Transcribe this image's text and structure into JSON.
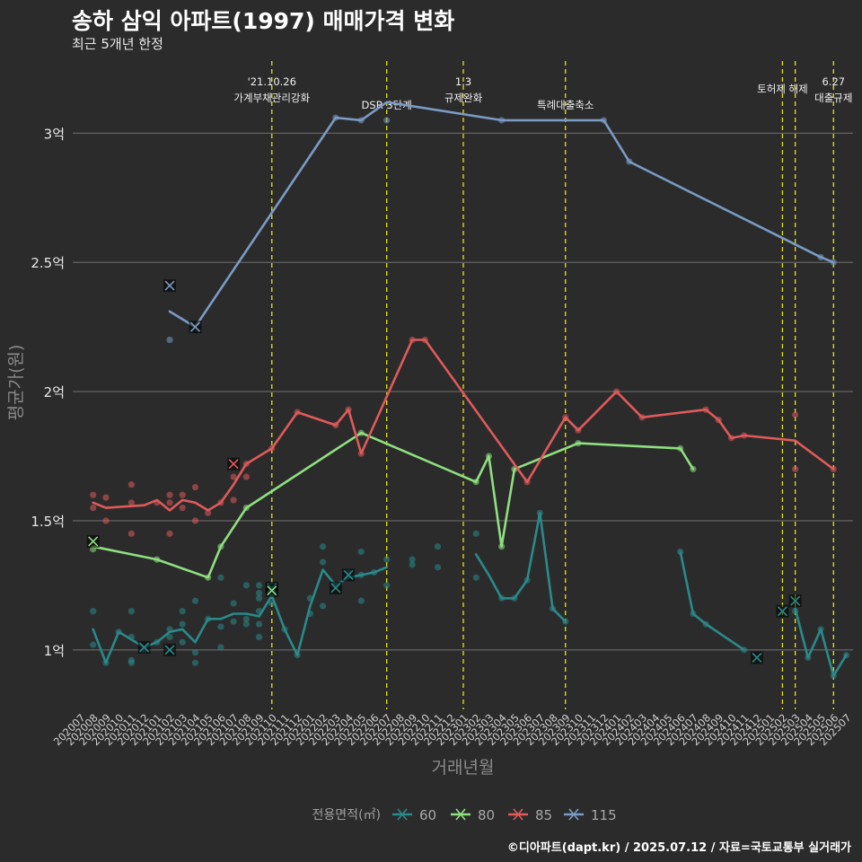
{
  "header": {
    "title": "송하 삼익 아파트(1997) 매매가격 변화",
    "subtitle": "최근 5개년 한정",
    "caption": "©디아파트(dapt.kr) / 2025.07.12 / 자료=국토교통부 실거래가"
  },
  "chart_data": {
    "type": "line",
    "title": "송하 삼익 아파트(1997) 매매가격 변화",
    "subtitle": "최근 5개년 한정",
    "xlabel": "거래년월",
    "ylabel": "평균가(원)",
    "ylim": [
      0.77,
      3.3
    ],
    "yticks": [
      1,
      1.5,
      2,
      2.5,
      3
    ],
    "ytick_labels": [
      "1억",
      "1.5억",
      "2억",
      "2.5억",
      "3억"
    ],
    "grid": true,
    "legend_title": "전용면적(㎡)",
    "legend_position": "bottom",
    "x_categories": [
      "202007",
      "202008",
      "202009",
      "202010",
      "202011",
      "202012",
      "202101",
      "202102",
      "202103",
      "202104",
      "202105",
      "202106",
      "202107",
      "202108",
      "202109",
      "202110",
      "202111",
      "202112",
      "202201",
      "202202",
      "202203",
      "202204",
      "202205",
      "202206",
      "202207",
      "202208",
      "202209",
      "202210",
      "202211",
      "202212",
      "202301",
      "202302",
      "202303",
      "202304",
      "202305",
      "202306",
      "202307",
      "202308",
      "202309",
      "202310",
      "202311",
      "202312",
      "202401",
      "202402",
      "202403",
      "202404",
      "202405",
      "202406",
      "202407",
      "202408",
      "202409",
      "202410",
      "202411",
      "202412",
      "202501",
      "202502",
      "202503",
      "202504",
      "202505",
      "202506",
      "202507"
    ],
    "events": [
      {
        "x": "202110",
        "label": "'21.10.26\n가계부채관리강화",
        "row": 0
      },
      {
        "x": "202207",
        "label": "DSR 3단계",
        "row": 1
      },
      {
        "x": "202301",
        "label": "1.3\n규제완화",
        "row": 0
      },
      {
        "x": "202309",
        "label": "특례대출축소",
        "row": 1
      },
      {
        "x": "202502",
        "label": "토허제 해제",
        "row": 0
      },
      {
        "x": "202503",
        "label": "",
        "row": 0
      },
      {
        "x": "202506",
        "label": "6.27\n대출규제",
        "row": 0
      }
    ],
    "series": [
      {
        "name": "60",
        "color": "#2a8a8a",
        "line": [
          [
            [
              "202008",
              1.08
            ],
            [
              "202009",
              0.95
            ],
            [
              "202010",
              1.07
            ],
            [
              "202011",
              1.04
            ],
            [
              "202012",
              1.01
            ],
            [
              "202101",
              1.03
            ],
            [
              "202102",
              1.07
            ],
            [
              "202103",
              1.08
            ],
            [
              "202104",
              1.03
            ],
            [
              "202105",
              1.12
            ],
            [
              "202106",
              1.12
            ],
            [
              "202107",
              1.14
            ],
            [
              "202108",
              1.14
            ],
            [
              "202109",
              1.13
            ],
            [
              "202110",
              1.21
            ],
            [
              "202111",
              1.08
            ],
            [
              "202112",
              0.98
            ],
            [
              "202201",
              1.17
            ],
            [
              "202202",
              1.31
            ],
            [
              "202203",
              1.25
            ],
            [
              "202204",
              1.28
            ],
            [
              "202205",
              1.29
            ],
            [
              "202206",
              1.3
            ],
            [
              "202207",
              1.32
            ]
          ],
          [
            [
              "202302",
              1.37
            ],
            [
              "202303",
              1.29
            ],
            [
              "202304",
              1.2
            ],
            [
              "202305",
              1.2
            ],
            [
              "202306",
              1.27
            ],
            [
              "202307",
              1.53
            ],
            [
              "202308",
              1.16
            ],
            [
              "202309",
              1.11
            ]
          ],
          [
            [
              "202406",
              1.38
            ],
            [
              "202407",
              1.14
            ],
            [
              "202408",
              1.1
            ],
            [
              "202411",
              1.0
            ]
          ],
          [
            [
              "202503",
              1.16
            ],
            [
              "202504",
              0.97
            ],
            [
              "202505",
              1.08
            ],
            [
              "202506",
              0.9
            ],
            [
              "202507",
              0.98
            ]
          ]
        ],
        "points": [
          [
            "202008",
            1.15
          ],
          [
            "202008",
            1.02
          ],
          [
            "202009",
            0.95
          ],
          [
            "202010",
            1.07
          ],
          [
            "202011",
            1.15
          ],
          [
            "202011",
            1.05
          ],
          [
            "202011",
            0.95
          ],
          [
            "202011",
            0.96
          ],
          [
            "202012",
            1.0
          ],
          [
            "202101",
            1.03
          ],
          [
            "202102",
            1.05
          ],
          [
            "202102",
            1.08
          ],
          [
            "202103",
            1.15
          ],
          [
            "202103",
            1.1
          ],
          [
            "202103",
            1.03
          ],
          [
            "202104",
            1.19
          ],
          [
            "202104",
            0.99
          ],
          [
            "202104",
            0.95
          ],
          [
            "202105",
            1.12
          ],
          [
            "202106",
            1.28
          ],
          [
            "202106",
            1.09
          ],
          [
            "202106",
            1.01
          ],
          [
            "202107",
            1.18
          ],
          [
            "202107",
            1.11
          ],
          [
            "202108",
            1.25
          ],
          [
            "202108",
            1.12
          ],
          [
            "202108",
            1.1
          ],
          [
            "202109",
            1.25
          ],
          [
            "202109",
            1.2
          ],
          [
            "202109",
            1.15
          ],
          [
            "202109",
            1.1
          ],
          [
            "202109",
            1.05
          ],
          [
            "202109",
            1.22
          ],
          [
            "202110",
            1.25
          ],
          [
            "202110",
            1.22
          ],
          [
            "202110",
            1.18
          ],
          [
            "202111",
            1.08
          ],
          [
            "202112",
            0.98
          ],
          [
            "202201",
            1.2
          ],
          [
            "202201",
            1.14
          ],
          [
            "202202",
            1.4
          ],
          [
            "202202",
            1.34
          ],
          [
            "202202",
            1.17
          ],
          [
            "202203",
            1.25
          ],
          [
            "202204",
            1.3
          ],
          [
            "202205",
            1.38
          ],
          [
            "202205",
            1.29
          ],
          [
            "202205",
            1.19
          ],
          [
            "202206",
            1.3
          ],
          [
            "202207",
            1.35
          ],
          [
            "202207",
            1.25
          ],
          [
            "202209",
            1.35
          ],
          [
            "202209",
            1.33
          ],
          [
            "202211",
            1.4
          ],
          [
            "202211",
            1.32
          ],
          [
            "202302",
            1.45
          ],
          [
            "202302",
            1.28
          ],
          [
            "202304",
            1.2
          ],
          [
            "202305",
            1.2
          ],
          [
            "202306",
            1.27
          ],
          [
            "202307",
            1.53
          ],
          [
            "202308",
            1.16
          ],
          [
            "202309",
            1.11
          ],
          [
            "202406",
            1.38
          ],
          [
            "202407",
            1.14
          ],
          [
            "202408",
            1.1
          ],
          [
            "202411",
            1.0
          ],
          [
            "202503",
            1.15
          ],
          [
            "202504",
            0.97
          ],
          [
            "202505",
            1.08
          ],
          [
            "202506",
            0.9
          ],
          [
            "202507",
            0.98
          ]
        ],
        "crosses": [
          [
            "202012",
            1.01
          ],
          [
            "202102",
            1.0
          ],
          [
            "202110",
            1.24
          ],
          [
            "202203",
            1.24
          ],
          [
            "202204",
            1.29
          ],
          [
            "202412",
            0.97
          ],
          [
            "202502",
            1.15
          ],
          [
            "202503",
            1.19
          ]
        ]
      },
      {
        "name": "80",
        "color": "#8fe07f",
        "line": [
          [
            [
              "202008",
              1.4
            ],
            [
              "202101",
              1.35
            ],
            [
              "202105",
              1.28
            ],
            [
              "202106",
              1.4
            ],
            [
              "202108",
              1.55
            ],
            [
              "202205",
              1.84
            ],
            [
              "202302",
              1.65
            ],
            [
              "202303",
              1.75
            ],
            [
              "202304",
              1.4
            ],
            [
              "202305",
              1.7
            ],
            [
              "202310",
              1.8
            ],
            [
              "202406",
              1.78
            ],
            [
              "202407",
              1.7
            ]
          ]
        ],
        "points": [
          [
            "202008",
            1.39
          ],
          [
            "202101",
            1.35
          ],
          [
            "202105",
            1.28
          ],
          [
            "202106",
            1.4
          ],
          [
            "202108",
            1.55
          ],
          [
            "202205",
            1.84
          ],
          [
            "202302",
            1.65
          ],
          [
            "202303",
            1.75
          ],
          [
            "202304",
            1.4
          ],
          [
            "202305",
            1.7
          ],
          [
            "202310",
            1.8
          ],
          [
            "202406",
            1.78
          ],
          [
            "202407",
            1.7
          ]
        ],
        "crosses": [
          [
            "202008",
            1.42
          ],
          [
            "202110",
            1.23
          ]
        ]
      },
      {
        "name": "85",
        "color": "#e05a5a",
        "line": [
          [
            [
              "202008",
              1.57
            ],
            [
              "202009",
              1.55
            ],
            [
              "202012",
              1.56
            ],
            [
              "202101",
              1.58
            ],
            [
              "202102",
              1.54
            ],
            [
              "202103",
              1.58
            ],
            [
              "202104",
              1.57
            ],
            [
              "202105",
              1.54
            ],
            [
              "202106",
              1.57
            ],
            [
              "202107",
              1.64
            ],
            [
              "202108",
              1.72
            ],
            [
              "202110",
              1.78
            ],
            [
              "202112",
              1.92
            ],
            [
              "202203",
              1.87
            ],
            [
              "202204",
              1.93
            ],
            [
              "202205",
              1.76
            ],
            [
              "202209",
              2.2
            ],
            [
              "202210",
              2.2
            ],
            [
              "202306",
              1.65
            ],
            [
              "202309",
              1.9
            ],
            [
              "202310",
              1.85
            ],
            [
              "202401",
              2.0
            ],
            [
              "202403",
              1.9
            ],
            [
              "202408",
              1.93
            ],
            [
              "202409",
              1.89
            ],
            [
              "202410",
              1.82
            ],
            [
              "202411",
              1.83
            ],
            [
              "202503",
              1.81
            ],
            [
              "202506",
              1.7
            ]
          ]
        ],
        "points": [
          [
            "202008",
            1.6
          ],
          [
            "202008",
            1.55
          ],
          [
            "202009",
            1.59
          ],
          [
            "202009",
            1.5
          ],
          [
            "202011",
            1.64
          ],
          [
            "202011",
            1.57
          ],
          [
            "202011",
            1.45
          ],
          [
            "202101",
            1.57
          ],
          [
            "202102",
            1.6
          ],
          [
            "202102",
            1.57
          ],
          [
            "202102",
            1.45
          ],
          [
            "202103",
            1.6
          ],
          [
            "202103",
            1.55
          ],
          [
            "202104",
            1.63
          ],
          [
            "202104",
            1.5
          ],
          [
            "202105",
            1.53
          ],
          [
            "202106",
            1.57
          ],
          [
            "202107",
            1.67
          ],
          [
            "202107",
            1.58
          ],
          [
            "202108",
            1.72
          ],
          [
            "202108",
            1.67
          ],
          [
            "202110",
            1.78
          ],
          [
            "202112",
            1.92
          ],
          [
            "202203",
            1.87
          ],
          [
            "202204",
            1.93
          ],
          [
            "202205",
            1.76
          ],
          [
            "202209",
            2.2
          ],
          [
            "202210",
            2.2
          ],
          [
            "202306",
            1.65
          ],
          [
            "202309",
            1.9
          ],
          [
            "202310",
            1.85
          ],
          [
            "202401",
            2.0
          ],
          [
            "202403",
            1.9
          ],
          [
            "202408",
            1.93
          ],
          [
            "202409",
            1.89
          ],
          [
            "202410",
            1.82
          ],
          [
            "202411",
            1.83
          ],
          [
            "202503",
            1.91
          ],
          [
            "202503",
            1.7
          ],
          [
            "202506",
            1.7
          ]
        ],
        "crosses": [
          [
            "202107",
            1.72
          ]
        ]
      },
      {
        "name": "115",
        "color": "#7a9bc4",
        "line": [
          [
            [
              "202102",
              2.31
            ],
            [
              "202104",
              2.25
            ],
            [
              "202203",
              3.06
            ],
            [
              "202205",
              3.05
            ],
            [
              "202207",
              3.12
            ],
            [
              "202304",
              3.05
            ],
            [
              "202312",
              3.05
            ],
            [
              "202402",
              2.89
            ],
            [
              "202505",
              2.52
            ],
            [
              "202506",
              2.5
            ]
          ]
        ],
        "points": [
          [
            "202102",
            2.2
          ],
          [
            "202203",
            3.06
          ],
          [
            "202205",
            3.05
          ],
          [
            "202207",
            3.05
          ],
          [
            "202304",
            3.05
          ],
          [
            "202312",
            3.05
          ],
          [
            "202402",
            2.89
          ],
          [
            "202505",
            2.52
          ],
          [
            "202506",
            2.5
          ]
        ],
        "crosses": [
          [
            "202102",
            2.41
          ],
          [
            "202104",
            2.25
          ]
        ]
      }
    ]
  }
}
